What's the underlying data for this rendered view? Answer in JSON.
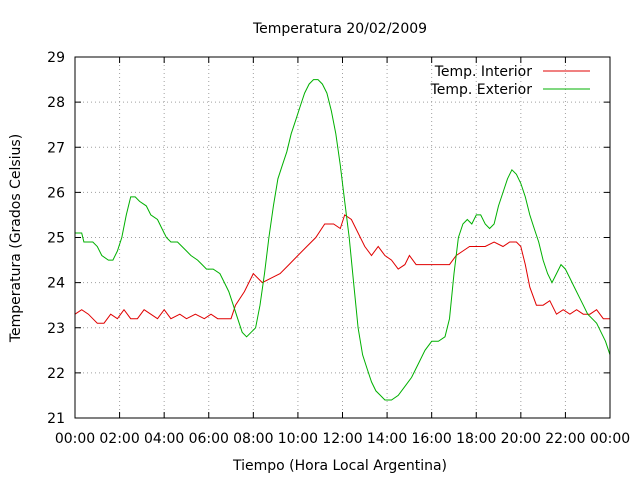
{
  "chart_data": {
    "type": "line",
    "title": "Temperatura 20/02/2009",
    "xlabel": "Tiempo (Hora Local Argentina)",
    "ylabel": "Temperatura (Grados Celsius)",
    "xlim": [
      0,
      24
    ],
    "ylim": [
      21,
      29
    ],
    "x_ticks": [
      0,
      2,
      4,
      6,
      8,
      10,
      12,
      14,
      16,
      18,
      20,
      22,
      24
    ],
    "x_tick_labels": [
      "00:00",
      "02:00",
      "04:00",
      "06:00",
      "08:00",
      "10:00",
      "12:00",
      "14:00",
      "16:00",
      "18:00",
      "20:00",
      "22:00",
      "00:00"
    ],
    "y_ticks": [
      21,
      22,
      23,
      24,
      25,
      26,
      27,
      28,
      29
    ],
    "y_tick_labels": [
      "21",
      "22",
      "23",
      "24",
      "25",
      "26",
      "27",
      "28",
      "29"
    ],
    "grid": true,
    "legend_position": "top-right",
    "series": [
      {
        "name": "Temp. Interior",
        "color": "#e00000",
        "points": [
          [
            0,
            23.3
          ],
          [
            0.3,
            23.4
          ],
          [
            0.6,
            23.3
          ],
          [
            0.8,
            23.2
          ],
          [
            1.0,
            23.1
          ],
          [
            1.3,
            23.1
          ],
          [
            1.6,
            23.3
          ],
          [
            1.9,
            23.2
          ],
          [
            2.2,
            23.4
          ],
          [
            2.5,
            23.2
          ],
          [
            2.8,
            23.2
          ],
          [
            3.1,
            23.4
          ],
          [
            3.4,
            23.3
          ],
          [
            3.7,
            23.2
          ],
          [
            4.0,
            23.4
          ],
          [
            4.3,
            23.2
          ],
          [
            4.7,
            23.3
          ],
          [
            5.0,
            23.2
          ],
          [
            5.4,
            23.3
          ],
          [
            5.8,
            23.2
          ],
          [
            6.1,
            23.3
          ],
          [
            6.4,
            23.2
          ],
          [
            6.7,
            23.2
          ],
          [
            7.0,
            23.2
          ],
          [
            7.2,
            23.5
          ],
          [
            7.6,
            23.8
          ],
          [
            8.0,
            24.2
          ],
          [
            8.4,
            24.0
          ],
          [
            8.8,
            24.1
          ],
          [
            9.2,
            24.2
          ],
          [
            9.6,
            24.4
          ],
          [
            10.0,
            24.6
          ],
          [
            10.4,
            24.8
          ],
          [
            10.8,
            25.0
          ],
          [
            11.2,
            25.3
          ],
          [
            11.6,
            25.3
          ],
          [
            11.9,
            25.2
          ],
          [
            12.1,
            25.5
          ],
          [
            12.4,
            25.4
          ],
          [
            12.7,
            25.1
          ],
          [
            13.0,
            24.8
          ],
          [
            13.3,
            24.6
          ],
          [
            13.6,
            24.8
          ],
          [
            13.9,
            24.6
          ],
          [
            14.2,
            24.5
          ],
          [
            14.5,
            24.3
          ],
          [
            14.8,
            24.4
          ],
          [
            15.0,
            24.6
          ],
          [
            15.3,
            24.4
          ],
          [
            15.6,
            24.4
          ],
          [
            16.0,
            24.4
          ],
          [
            16.4,
            24.4
          ],
          [
            16.8,
            24.4
          ],
          [
            17.1,
            24.6
          ],
          [
            17.4,
            24.7
          ],
          [
            17.7,
            24.8
          ],
          [
            18.0,
            24.8
          ],
          [
            18.4,
            24.8
          ],
          [
            18.8,
            24.9
          ],
          [
            19.2,
            24.8
          ],
          [
            19.5,
            24.9
          ],
          [
            19.8,
            24.9
          ],
          [
            20.0,
            24.8
          ],
          [
            20.2,
            24.4
          ],
          [
            20.4,
            23.9
          ],
          [
            20.7,
            23.5
          ],
          [
            21.0,
            23.5
          ],
          [
            21.3,
            23.6
          ],
          [
            21.6,
            23.3
          ],
          [
            21.9,
            23.4
          ],
          [
            22.2,
            23.3
          ],
          [
            22.5,
            23.4
          ],
          [
            22.8,
            23.3
          ],
          [
            23.1,
            23.3
          ],
          [
            23.4,
            23.4
          ],
          [
            23.7,
            23.2
          ],
          [
            24.0,
            23.2
          ]
        ]
      },
      {
        "name": "Temp. Exterior",
        "color": "#00b000",
        "points": [
          [
            0,
            25.1
          ],
          [
            0.3,
            25.1
          ],
          [
            0.4,
            24.9
          ],
          [
            0.8,
            24.9
          ],
          [
            1.0,
            24.8
          ],
          [
            1.2,
            24.6
          ],
          [
            1.5,
            24.5
          ],
          [
            1.7,
            24.5
          ],
          [
            1.9,
            24.7
          ],
          [
            2.1,
            25.0
          ],
          [
            2.3,
            25.5
          ],
          [
            2.5,
            25.9
          ],
          [
            2.7,
            25.9
          ],
          [
            2.9,
            25.8
          ],
          [
            3.2,
            25.7
          ],
          [
            3.4,
            25.5
          ],
          [
            3.7,
            25.4
          ],
          [
            3.9,
            25.2
          ],
          [
            4.1,
            25.0
          ],
          [
            4.3,
            24.9
          ],
          [
            4.6,
            24.9
          ],
          [
            4.8,
            24.8
          ],
          [
            5.0,
            24.7
          ],
          [
            5.2,
            24.6
          ],
          [
            5.5,
            24.5
          ],
          [
            5.7,
            24.4
          ],
          [
            5.9,
            24.3
          ],
          [
            6.2,
            24.3
          ],
          [
            6.5,
            24.2
          ],
          [
            6.7,
            24.0
          ],
          [
            6.9,
            23.8
          ],
          [
            7.1,
            23.5
          ],
          [
            7.3,
            23.2
          ],
          [
            7.5,
            22.9
          ],
          [
            7.7,
            22.8
          ],
          [
            7.9,
            22.9
          ],
          [
            8.1,
            23.0
          ],
          [
            8.3,
            23.5
          ],
          [
            8.5,
            24.2
          ],
          [
            8.7,
            25.0
          ],
          [
            8.9,
            25.7
          ],
          [
            9.1,
            26.3
          ],
          [
            9.3,
            26.6
          ],
          [
            9.5,
            26.9
          ],
          [
            9.7,
            27.3
          ],
          [
            9.9,
            27.6
          ],
          [
            10.1,
            27.9
          ],
          [
            10.3,
            28.2
          ],
          [
            10.5,
            28.4
          ],
          [
            10.7,
            28.5
          ],
          [
            10.9,
            28.5
          ],
          [
            11.1,
            28.4
          ],
          [
            11.3,
            28.2
          ],
          [
            11.5,
            27.8
          ],
          [
            11.7,
            27.3
          ],
          [
            11.9,
            26.6
          ],
          [
            12.1,
            25.8
          ],
          [
            12.3,
            25.0
          ],
          [
            12.5,
            24.0
          ],
          [
            12.7,
            23.0
          ],
          [
            12.9,
            22.4
          ],
          [
            13.1,
            22.1
          ],
          [
            13.3,
            21.8
          ],
          [
            13.5,
            21.6
          ],
          [
            13.7,
            21.5
          ],
          [
            13.9,
            21.4
          ],
          [
            14.2,
            21.4
          ],
          [
            14.5,
            21.5
          ],
          [
            14.8,
            21.7
          ],
          [
            15.1,
            21.9
          ],
          [
            15.4,
            22.2
          ],
          [
            15.7,
            22.5
          ],
          [
            16.0,
            22.7
          ],
          [
            16.3,
            22.7
          ],
          [
            16.6,
            22.8
          ],
          [
            16.8,
            23.2
          ],
          [
            17.0,
            24.2
          ],
          [
            17.2,
            25.0
          ],
          [
            17.4,
            25.3
          ],
          [
            17.6,
            25.4
          ],
          [
            17.8,
            25.3
          ],
          [
            18.0,
            25.5
          ],
          [
            18.2,
            25.5
          ],
          [
            18.4,
            25.3
          ],
          [
            18.6,
            25.2
          ],
          [
            18.8,
            25.3
          ],
          [
            19.0,
            25.7
          ],
          [
            19.2,
            26.0
          ],
          [
            19.4,
            26.3
          ],
          [
            19.6,
            26.5
          ],
          [
            19.8,
            26.4
          ],
          [
            20.0,
            26.2
          ],
          [
            20.2,
            25.9
          ],
          [
            20.4,
            25.5
          ],
          [
            20.6,
            25.2
          ],
          [
            20.8,
            24.9
          ],
          [
            21.0,
            24.5
          ],
          [
            21.2,
            24.2
          ],
          [
            21.4,
            24.0
          ],
          [
            21.6,
            24.2
          ],
          [
            21.8,
            24.4
          ],
          [
            22.0,
            24.3
          ],
          [
            22.2,
            24.1
          ],
          [
            22.4,
            23.9
          ],
          [
            22.6,
            23.7
          ],
          [
            22.8,
            23.5
          ],
          [
            23.0,
            23.3
          ],
          [
            23.2,
            23.2
          ],
          [
            23.4,
            23.1
          ],
          [
            23.6,
            22.9
          ],
          [
            23.8,
            22.7
          ],
          [
            24.0,
            22.4
          ]
        ]
      }
    ]
  }
}
